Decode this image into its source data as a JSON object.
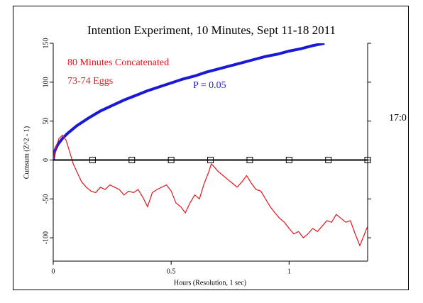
{
  "chart_data": {
    "type": "line",
    "title": "Intention Experiment, 10 Minutes, Sept 11-18 2011",
    "x_label": "Hours (Resolution, 1 sec)",
    "y_label": "Cumsum (Z^2 - 1)",
    "annotations": [
      {
        "text": "80 Minutes Concatenated",
        "color": "#e8141c"
      },
      {
        "text": "73-74 Eggs",
        "color": "#e8141c"
      },
      {
        "text": "P = 0.05",
        "color": "#1a1ad6"
      },
      {
        "text": "17:0",
        "color": "#000000"
      }
    ],
    "xlim": [
      0,
      1.333
    ],
    "ylim": [
      -130,
      150
    ],
    "xticks": [
      0,
      0.5,
      1
    ],
    "yticks": [
      -100,
      -50,
      0,
      50,
      100,
      150
    ],
    "series": [
      {
        "color": "#1a1ad6",
        "x": [
          0,
          0.005,
          0.01,
          0.02,
          0.04,
          0.06,
          0.08,
          0.1,
          0.15,
          0.2,
          0.25,
          0.3,
          0.35,
          0.4,
          0.45,
          0.5,
          0.55,
          0.6,
          0.65,
          0.7,
          0.75,
          0.8,
          0.85,
          0.9,
          0.95,
          1.0,
          1.05,
          1.1,
          1.15
        ],
        "values": [
          0,
          10,
          14,
          20,
          28,
          34,
          39,
          44,
          54,
          63,
          70,
          77,
          83,
          89,
          94,
          99,
          104,
          108,
          113,
          117,
          121,
          125,
          129,
          133,
          136,
          140,
          143,
          147,
          150
        ]
      },
      {
        "color": "#e8141c",
        "x": [
          0,
          0.01,
          0.025,
          0.04,
          0.055,
          0.07,
          0.085,
          0.1,
          0.12,
          0.14,
          0.16,
          0.18,
          0.2,
          0.22,
          0.24,
          0.26,
          0.28,
          0.3,
          0.32,
          0.34,
          0.36,
          0.38,
          0.4,
          0.42,
          0.44,
          0.46,
          0.48,
          0.5,
          0.52,
          0.54,
          0.56,
          0.58,
          0.6,
          0.62,
          0.64,
          0.66,
          0.67,
          0.68,
          0.7,
          0.72,
          0.74,
          0.76,
          0.78,
          0.8,
          0.82,
          0.84,
          0.86,
          0.88,
          0.9,
          0.92,
          0.94,
          0.96,
          0.98,
          1.0,
          1.02,
          1.04,
          1.06,
          1.08,
          1.1,
          1.12,
          1.14,
          1.16,
          1.18,
          1.2,
          1.22,
          1.24,
          1.26,
          1.28,
          1.3,
          1.32,
          1.333
        ],
        "values": [
          0,
          15,
          28,
          32,
          25,
          10,
          -5,
          -15,
          -28,
          -35,
          -40,
          -42,
          -35,
          -38,
          -32,
          -35,
          -38,
          -45,
          -40,
          -42,
          -38,
          -48,
          -60,
          -42,
          -38,
          -35,
          -32,
          -40,
          -55,
          -60,
          -68,
          -55,
          -45,
          -50,
          -30,
          -15,
          -5,
          -8,
          -15,
          -20,
          -25,
          -30,
          -35,
          -28,
          -20,
          -30,
          -38,
          -40,
          -50,
          -60,
          -68,
          -75,
          -80,
          -88,
          -95,
          -92,
          -100,
          -95,
          -88,
          -92,
          -85,
          -78,
          -80,
          -70,
          -75,
          -80,
          -78,
          -95,
          -110,
          -95,
          -85
        ]
      },
      {
        "color": "#000000",
        "marker": "square",
        "x": [
          0.1667,
          0.3333,
          0.5,
          0.6667,
          0.8333,
          1.0,
          1.1667,
          1.333
        ],
        "values": [
          0,
          0,
          0,
          0,
          0,
          0,
          0,
          0
        ]
      }
    ]
  }
}
